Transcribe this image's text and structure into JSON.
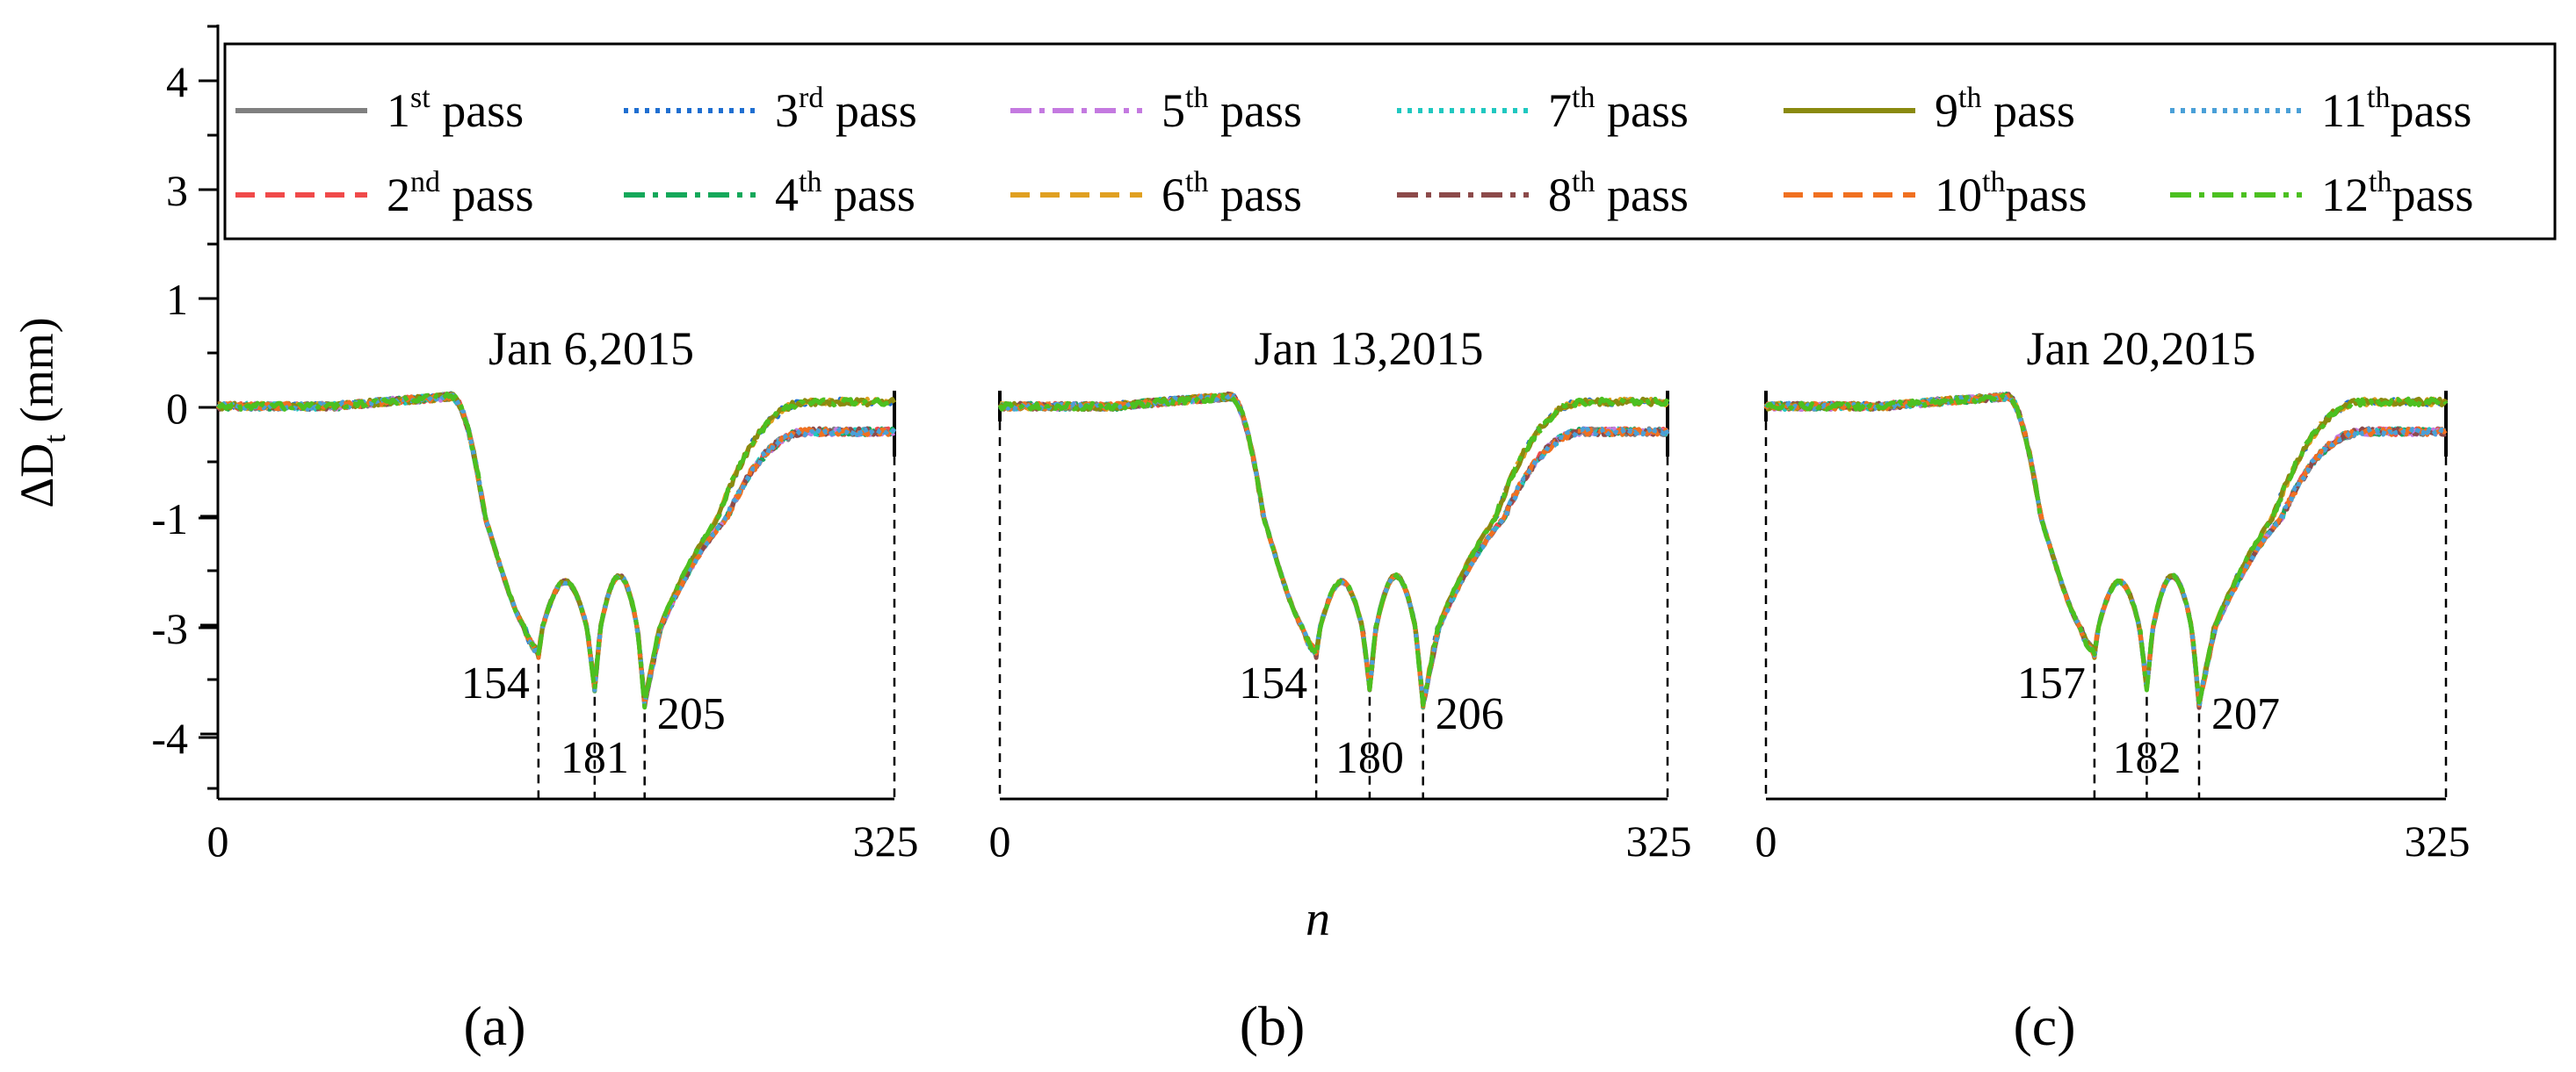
{
  "colors": {
    "pass_1": "#808080",
    "pass_2": "#f04a4a",
    "pass_3": "#1f6fd1",
    "pass_4": "#14a85a",
    "pass_5": "#c47ae0",
    "pass_6": "#e0a020",
    "pass_7": "#20c8c0",
    "pass_8": "#8c4a4a",
    "pass_9": "#8a8a10",
    "pass_10": "#f07020",
    "pass_11": "#4aa0d8",
    "pass_12": "#4cc020"
  },
  "chart_data": {
    "type": "line",
    "ylabel": "ΔD",
    "ylabel_sub": "t",
    "ylabel_unit": " (mm)",
    "xlabel": "n",
    "y_ticks": [
      "4",
      "3",
      "1",
      "0",
      "-1",
      "-3",
      "-4"
    ],
    "legend": [
      {
        "num": "1",
        "sup": "st",
        "word": " pass",
        "style": "solid"
      },
      {
        "num": "3",
        "sup": "rd",
        "word": " pass",
        "style": "dotted"
      },
      {
        "num": "5",
        "sup": "th",
        "word": " pass",
        "style": "dashdot"
      },
      {
        "num": "7",
        "sup": "th",
        "word": " pass",
        "style": "dotted"
      },
      {
        "num": "9",
        "sup": "th",
        "word": " pass",
        "style": "solid"
      },
      {
        "num": "11",
        "sup": "th",
        "word": "pass",
        "style": "dotted"
      },
      {
        "num": "2",
        "sup": "nd",
        "word": " pass",
        "style": "dashed"
      },
      {
        "num": "4",
        "sup": "th",
        "word": " pass",
        "style": "dashdot"
      },
      {
        "num": "6",
        "sup": "th",
        "word": " pass",
        "style": "dashed"
      },
      {
        "num": "8",
        "sup": "th",
        "word": " pass",
        "style": "dashdot"
      },
      {
        "num": "10",
        "sup": "th",
        "word": "pass",
        "style": "dashed"
      },
      {
        "num": "12",
        "sup": "th",
        "word": "pass",
        "style": "dashdot"
      }
    ],
    "panels": [
      {
        "label": "(a)",
        "date": "Jan 6,2015",
        "x_range": [
          0,
          325
        ],
        "x_ticks": [
          "0",
          "325"
        ],
        "minima": [
          154,
          181,
          205
        ],
        "minima_labels": [
          "154",
          "181",
          "205"
        ],
        "baseline_end": [
          0.05,
          -0.22
        ]
      },
      {
        "label": "(b)",
        "date": "Jan 13,2015",
        "x_range": [
          0,
          325
        ],
        "x_ticks": [
          "0",
          "325"
        ],
        "minima": [
          154,
          180,
          206
        ],
        "minima_labels": [
          "154",
          "180",
          "206"
        ],
        "baseline_end": [
          0.05,
          -0.22
        ]
      },
      {
        "label": "(c)",
        "date": "Jan 20,2015",
        "x_range": [
          0,
          325
        ],
        "x_ticks": [
          "0",
          "325"
        ],
        "minima": [
          157,
          182,
          207
        ],
        "minima_labels": [
          "157",
          "182",
          "207"
        ],
        "baseline_end": [
          0.05,
          -0.22
        ]
      }
    ]
  }
}
